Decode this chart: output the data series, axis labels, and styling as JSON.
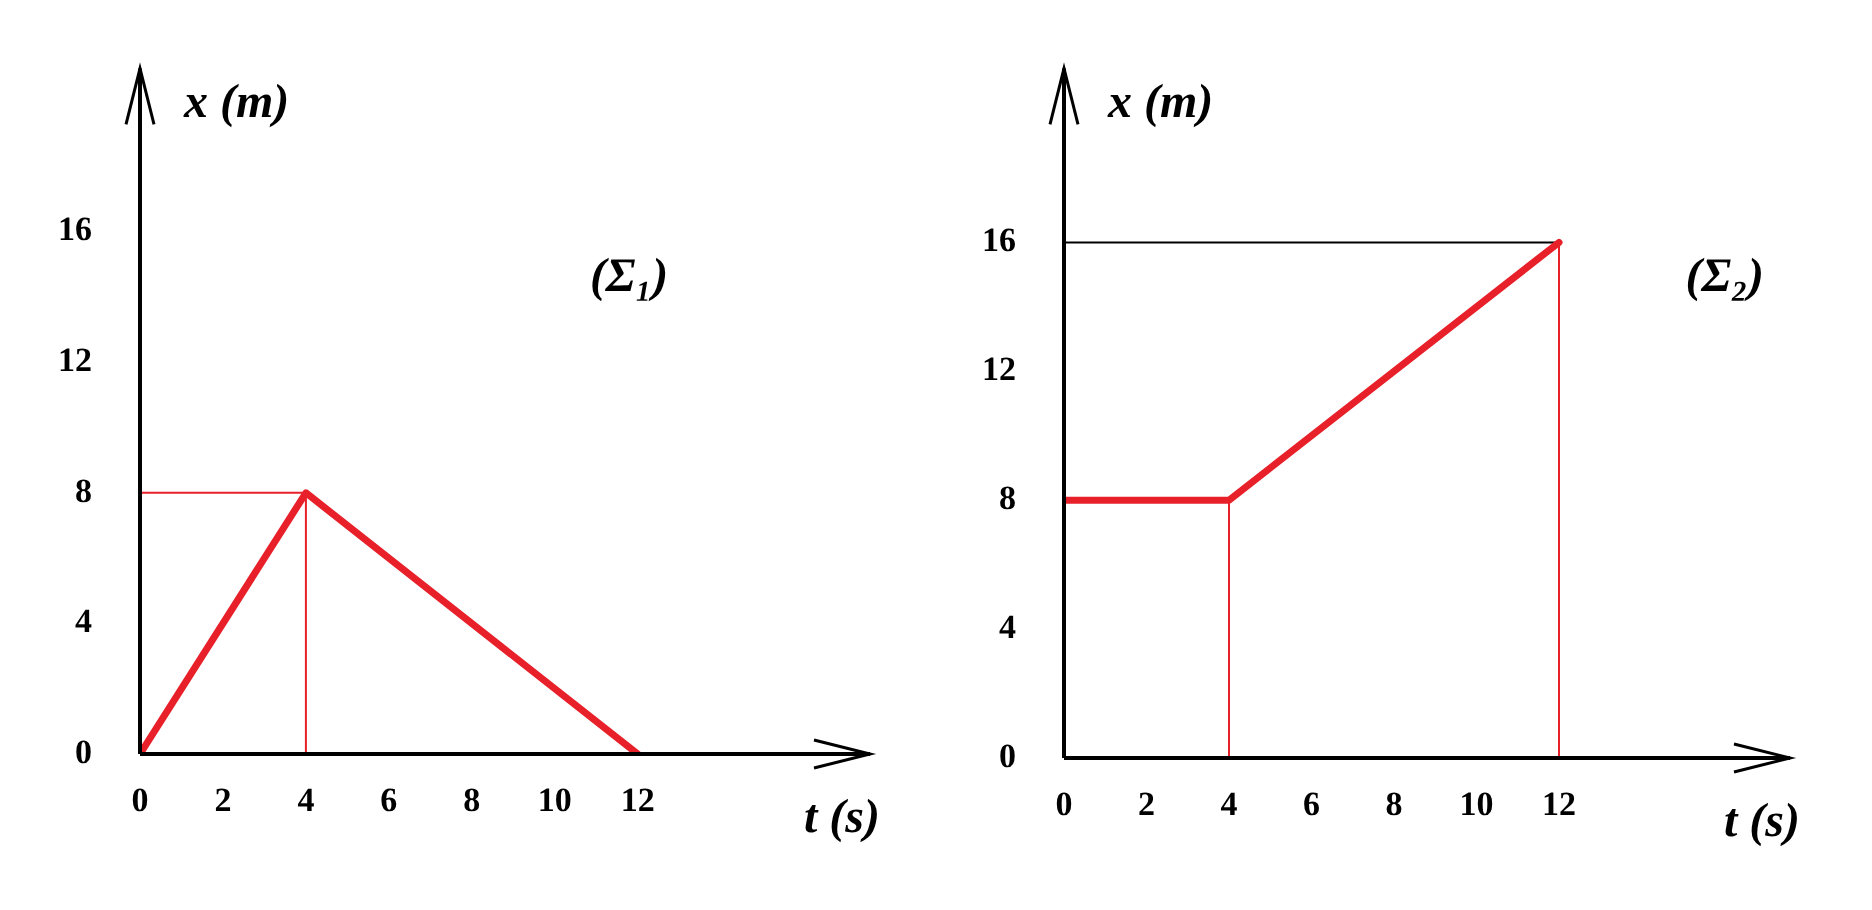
{
  "chart_data": [
    {
      "type": "line",
      "xlabel": "t (s)",
      "ylabel": "x (m)",
      "annotations": [
        "(Σ₁)"
      ],
      "xlim": [
        0,
        17.6
      ],
      "ylim": [
        0,
        21
      ],
      "xticks": [
        0,
        2,
        4,
        6,
        8,
        10,
        12
      ],
      "yticks": [
        0,
        4,
        8,
        12,
        16
      ],
      "grid": false,
      "legend": false,
      "marker": "none",
      "line_style": "solid",
      "series": [
        {
          "color": "#e8202a",
          "x": [
            0,
            4,
            12
          ],
          "values": [
            0,
            8,
            0
          ]
        },
        {
          "color": "#e8202a",
          "x": [
            0,
            4,
            4
          ],
          "values": [
            8,
            8,
            0
          ]
        }
      ]
    },
    {
      "type": "line",
      "xlabel": "t (s)",
      "ylabel": "x (m)",
      "annotations": [
        "(Σ₂)"
      ],
      "xlim": [
        0,
        17.6
      ],
      "ylim": [
        0,
        21.4
      ],
      "xticks": [
        0,
        2,
        4,
        6,
        8,
        10,
        12
      ],
      "yticks": [
        0,
        4,
        8,
        12,
        16
      ],
      "grid": false,
      "legend": false,
      "marker": "none",
      "line_style": "solid",
      "series": [
        {
          "color": "#e8202a",
          "x": [
            0,
            4,
            12
          ],
          "values": [
            8,
            8,
            16
          ]
        },
        {
          "color": "#000000",
          "x": [
            0,
            12
          ],
          "values": [
            16,
            16
          ]
        },
        {
          "color": "#e8202a",
          "x": [
            12,
            12
          ],
          "values": [
            16,
            0
          ]
        },
        {
          "color": "#e8202a",
          "x": [
            4,
            4
          ],
          "values": [
            8,
            0
          ]
        }
      ]
    }
  ]
}
